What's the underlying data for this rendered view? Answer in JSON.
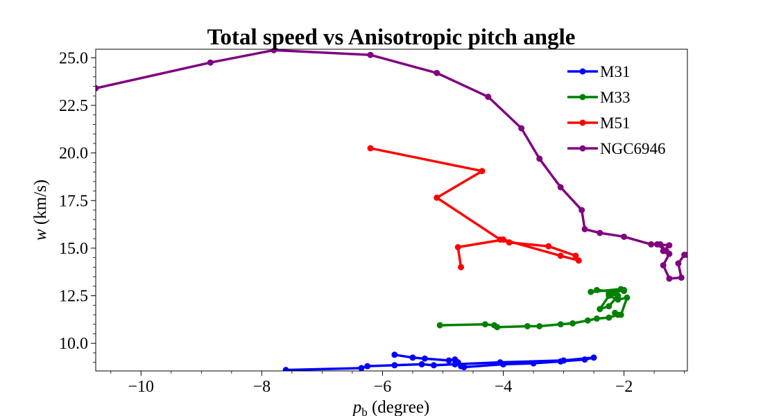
{
  "chart_data": {
    "type": "line",
    "title": "Total speed vs Anisotropic pitch angle",
    "xlabel": {
      "main": "p",
      "sub": "b",
      "unit": " (degree)"
    },
    "ylabel": {
      "main": "w",
      "unit": " (km/s)"
    },
    "xlim": [
      -10.75,
      -0.95
    ],
    "ylim": [
      8.55,
      25.45
    ],
    "x_ticks": [
      -10,
      -8,
      -6,
      -4,
      -2
    ],
    "x_tick_labels": [
      "−10",
      "−8",
      "−6",
      "−4",
      "−2"
    ],
    "y_ticks": [
      10.0,
      12.5,
      15.0,
      17.5,
      20.0,
      22.5,
      25.0
    ],
    "y_tick_labels": [
      "10.0",
      "12.5",
      "15.0",
      "17.5",
      "20.0",
      "22.5",
      "25.0"
    ],
    "grid": false,
    "legend_position": "top-right",
    "series": [
      {
        "name": "M31",
        "color": "#0000ff",
        "x": [
          -5.8,
          -5.5,
          -5.3,
          -4.9,
          -4.8,
          -4.75,
          -4.7,
          -4.65,
          -4.0,
          -3.5,
          -3.05,
          -2.65,
          -2.5,
          -3.0,
          -4.05,
          -4.8,
          -5.15,
          -5.35,
          -5.8,
          -6.25,
          -6.35,
          -7.6
        ],
        "y": [
          9.4,
          9.25,
          9.2,
          9.1,
          9.15,
          9.0,
          8.8,
          8.75,
          8.9,
          8.95,
          9.05,
          9.15,
          9.25,
          9.1,
          9.0,
          8.9,
          8.85,
          8.9,
          8.85,
          8.8,
          8.7,
          8.6
        ]
      },
      {
        "name": "M33",
        "color": "#008000",
        "x": [
          -5.05,
          -4.3,
          -4.15,
          -4.1,
          -3.6,
          -3.4,
          -3.05,
          -2.85,
          -2.6,
          -2.45,
          -2.25,
          -2.1,
          -2.15,
          -2.05,
          -1.95,
          -2.1,
          -2.25,
          -2.4,
          -2.25,
          -2.1,
          -2.25,
          -2.0,
          -2.15,
          -2.45,
          -2.55,
          -2.05,
          -2.0
        ],
        "y": [
          10.95,
          11.0,
          10.95,
          10.85,
          10.9,
          10.9,
          11.0,
          11.05,
          11.2,
          11.3,
          11.35,
          11.5,
          11.6,
          11.5,
          12.4,
          12.3,
          12.5,
          11.8,
          11.95,
          12.5,
          12.6,
          12.8,
          12.7,
          12.8,
          12.7,
          12.85,
          12.75
        ]
      },
      {
        "name": "M51",
        "color": "#ff0000",
        "x": [
          -6.2,
          -4.35,
          -5.1,
          -4.05,
          -3.9,
          -3.25,
          -2.8,
          -2.75,
          -3.05,
          -4.0,
          -4.75,
          -4.7
        ],
        "y": [
          20.25,
          19.05,
          17.65,
          15.45,
          15.3,
          15.1,
          14.6,
          14.35,
          14.6,
          15.45,
          15.05,
          14.0
        ]
      },
      {
        "name": "NGC6946",
        "color": "#800080",
        "x": [
          -10.75,
          -8.85,
          -7.8,
          -6.2,
          -5.1,
          -4.25,
          -3.7,
          -3.4,
          -3.05,
          -2.7,
          -2.65,
          -2.4,
          -2.0,
          -1.55,
          -1.4,
          -1.3,
          -1.45,
          -1.25,
          -1.35,
          -1.25,
          -1.35,
          -1.25,
          -1.05,
          -1.1,
          -1.0,
          -0.95
        ],
        "y": [
          23.4,
          24.75,
          25.4,
          25.15,
          24.2,
          22.95,
          21.3,
          19.7,
          18.2,
          17.0,
          16.0,
          15.8,
          15.6,
          15.2,
          15.2,
          14.85,
          15.2,
          15.15,
          14.85,
          14.7,
          14.1,
          13.4,
          13.45,
          14.2,
          14.65,
          14.65
        ]
      }
    ]
  }
}
